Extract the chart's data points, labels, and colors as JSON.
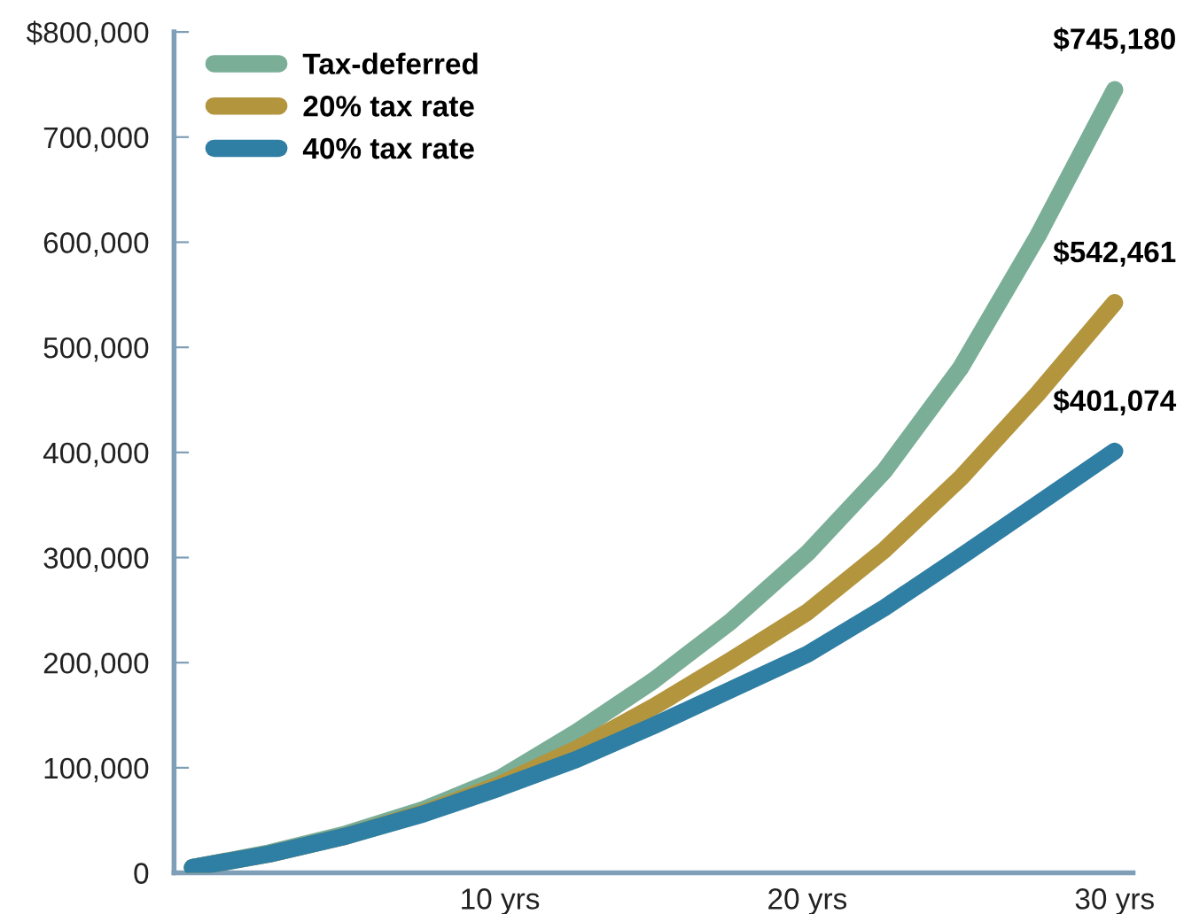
{
  "chart_data": {
    "type": "line",
    "x": [
      0,
      2.5,
      5,
      7.5,
      10,
      12.5,
      15,
      17.5,
      20,
      22.5,
      25,
      27.5,
      30
    ],
    "series": [
      {
        "name": "Tax-deferred",
        "color": "#7aae97",
        "values": [
          5000,
          19000,
          37000,
          60000,
          90000,
          134000,
          183000,
          239000,
          304000,
          382000,
          481000,
          606000,
          745180
        ],
        "value_labels": [
          null,
          null,
          null,
          null,
          null,
          null,
          null,
          null,
          null,
          null,
          null,
          null,
          "$745,180"
        ]
      },
      {
        "name": "20% tax rate",
        "color": "#b3953e",
        "values": [
          5000,
          18000,
          35000,
          57000,
          84000,
          118000,
          158000,
          202000,
          248000,
          307000,
          376000,
          456000,
          542461
        ],
        "value_labels": [
          null,
          null,
          null,
          null,
          null,
          null,
          null,
          null,
          null,
          null,
          null,
          null,
          "$542,461"
        ]
      },
      {
        "name": "40% tax rate",
        "color": "#2f7ea3",
        "values": [
          5000,
          18000,
          35000,
          56000,
          81000,
          108000,
          140000,
          174000,
          208000,
          252000,
          301000,
          351000,
          401074
        ],
        "value_labels": [
          null,
          null,
          null,
          null,
          null,
          null,
          null,
          null,
          null,
          null,
          null,
          null,
          "$401,074"
        ]
      }
    ],
    "xlim": [
      -0.6,
      30.6
    ],
    "xticks": [
      {
        "value": 10,
        "label": "10 yrs"
      },
      {
        "value": 20,
        "label": "20 yrs"
      },
      {
        "value": 30,
        "label": "30 yrs"
      }
    ],
    "ylim": [
      0,
      800000
    ],
    "yticks": [
      0,
      {
        "value": 100000,
        "label": "100,000"
      },
      {
        "value": 200000,
        "label": "200,000"
      },
      {
        "value": 300000,
        "label": "300,000"
      },
      {
        "value": 400000,
        "label": "400,000"
      },
      {
        "value": 500000,
        "label": "500,000"
      },
      {
        "value": 600000,
        "label": "600,000"
      },
      {
        "value": 700000,
        "label": "700,000"
      },
      {
        "value": 800000,
        "label": "$800,000"
      }
    ],
    "legend": "top left",
    "grid": false,
    "marker": "none",
    "line_style": "solid"
  }
}
